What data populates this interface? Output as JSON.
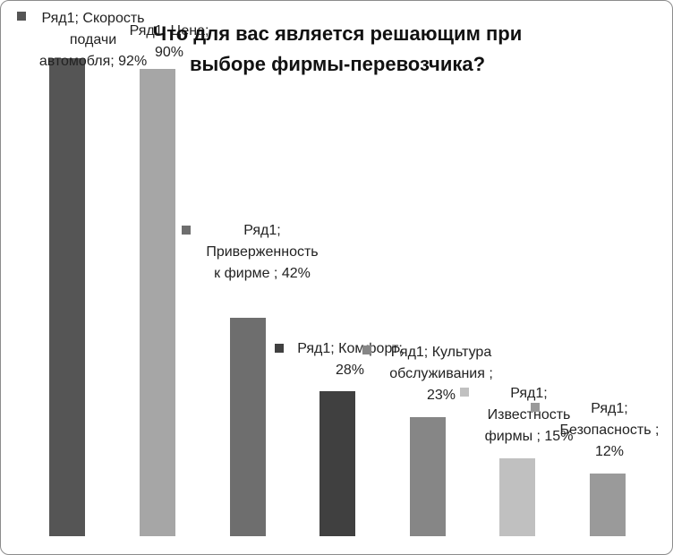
{
  "chart_data": {
    "type": "bar",
    "title": "Что для вас является решающим при выборе фирмы-перевозчика?",
    "values": [
      92,
      90,
      42,
      28,
      23,
      15,
      12
    ],
    "value_labels": [
      "Ряд1; Скорость подачи автомобля; 92%",
      "Ряд1; Цена; 90%",
      "Ряд1; Приверженность к фирме ; 42%",
      "Ряд1; Комфорт; 28%",
      "Ряд1; Культура обслуживания ; 23%",
      "Ряд1; Известность фирмы ; 15%",
      "Ряд1; Безопасность ; 12%"
    ],
    "colors": [
      "#555555",
      "#a6a6a6",
      "#6e6e6e",
      "#404040",
      "#868686",
      "#c0c0c0",
      "#9a9a9a"
    ]
  }
}
